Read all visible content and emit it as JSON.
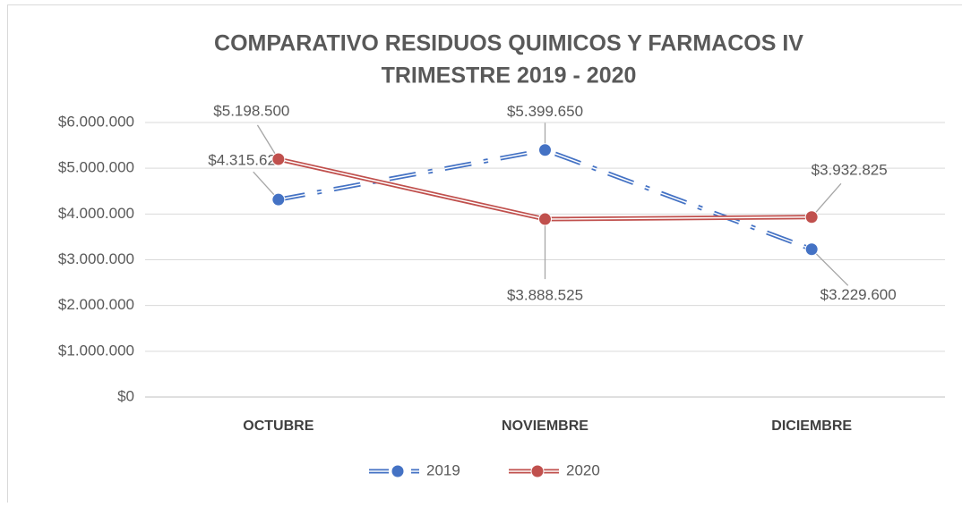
{
  "chart_data": {
    "type": "line",
    "title": [
      "COMPARATIVO RESIDUOS QUIMICOS Y FARMACOS IV",
      "TRIMESTRE 2019 - 2020"
    ],
    "categories": [
      "OCTUBRE",
      "NOVIEMBRE",
      "DICIEMBRE"
    ],
    "series": [
      {
        "name": "2019",
        "color": "#4472c4",
        "dash": true,
        "values": [
          4315625,
          5399650,
          3229600
        ],
        "value_labels": [
          "$4.315.625",
          "$5.399.650",
          "$3.229.600"
        ]
      },
      {
        "name": "2020",
        "color": "#c0504d",
        "dash": false,
        "values": [
          5198500,
          3888525,
          3932825
        ],
        "value_labels": [
          "$5.198.500",
          "$3.888.525",
          "$3.932.825"
        ]
      }
    ],
    "ylim": [
      0,
      6000000
    ],
    "yticks": [
      {
        "value": 0,
        "label": "$0"
      },
      {
        "value": 1000000,
        "label": "$1.000.000"
      },
      {
        "value": 2000000,
        "label": "$2.000.000"
      },
      {
        "value": 3000000,
        "label": "$3.000.000"
      },
      {
        "value": 4000000,
        "label": "$4.000.000"
      },
      {
        "value": 5000000,
        "label": "$5.000.000"
      },
      {
        "value": 6000000,
        "label": "$6.000.000"
      }
    ],
    "grid": true,
    "legend": "bottom"
  }
}
